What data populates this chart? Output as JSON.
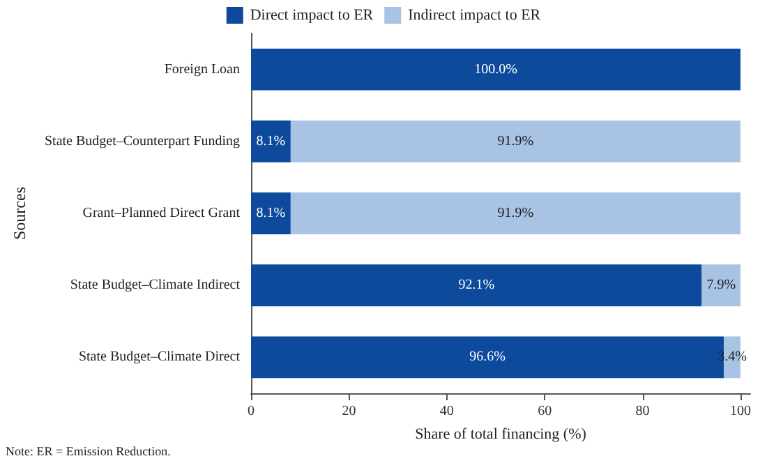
{
  "chart_data": {
    "type": "bar",
    "orientation": "horizontal",
    "stacked": true,
    "categories": [
      "Foreign Loan",
      "State Budget–Counterpart Funding",
      "Grant–Planned Direct Grant",
      "State Budget–Climate Indirect",
      "State Budget–Climate Direct"
    ],
    "series": [
      {
        "name": "Direct impact to ER",
        "color": "#0d4a9c",
        "values": [
          100.0,
          8.1,
          8.1,
          92.1,
          96.6
        ],
        "value_labels": [
          "100.0%",
          "8.1%",
          "8.1%",
          "92.1%",
          "96.6%"
        ]
      },
      {
        "name": "Indirect impact to ER",
        "color": "#a8c3e3",
        "values": [
          null,
          91.9,
          91.9,
          7.9,
          3.4
        ],
        "value_labels": [
          null,
          "91.9%",
          "91.9%",
          "7.9%",
          "3.4%"
        ]
      }
    ],
    "xlabel": "Share of total financing (%)",
    "ylabel": "Sources",
    "xlim": [
      0,
      102
    ],
    "xticks": [
      0,
      20,
      40,
      60,
      80,
      100
    ],
    "grid": false,
    "legend": "top",
    "annotations": [
      "Note: ER = Emission Reduction."
    ]
  }
}
